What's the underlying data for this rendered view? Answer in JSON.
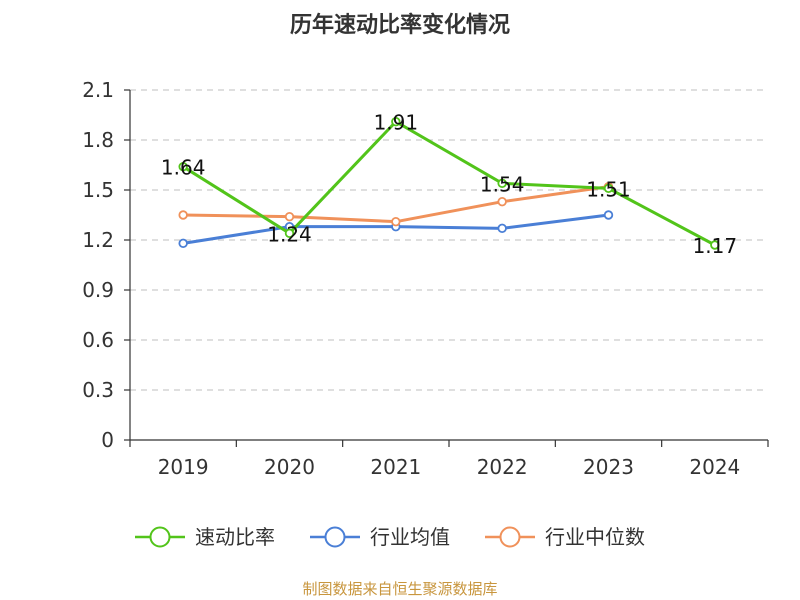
{
  "chart_data": {
    "type": "line",
    "title": "历年速动比率变化情况",
    "categories": [
      "2019",
      "2020",
      "2021",
      "2022",
      "2023",
      "2024"
    ],
    "ylim": [
      0,
      2.1
    ],
    "yticks": [
      "0",
      "0.3",
      "0.6",
      "0.9",
      "1.2",
      "1.5",
      "1.8",
      "2.1"
    ],
    "grid": "horizontal-dashed",
    "legend_position": "bottom",
    "series": [
      {
        "name": "速动比率",
        "color": "#52c41a",
        "values": [
          1.64,
          1.24,
          1.91,
          1.54,
          1.51,
          1.17
        ],
        "labels": [
          "1.64",
          "1.24",
          "1.91",
          "1.54",
          "1.51",
          "1.17"
        ]
      },
      {
        "name": "行业均值",
        "color": "#4a7fd6",
        "values": [
          1.18,
          1.28,
          1.28,
          1.27,
          1.35,
          null
        ]
      },
      {
        "name": "行业中位数",
        "color": "#f0915a",
        "values": [
          1.35,
          1.34,
          1.31,
          1.43,
          1.52,
          null
        ]
      }
    ]
  },
  "source_text": "制图数据来自恒生聚源数据库"
}
